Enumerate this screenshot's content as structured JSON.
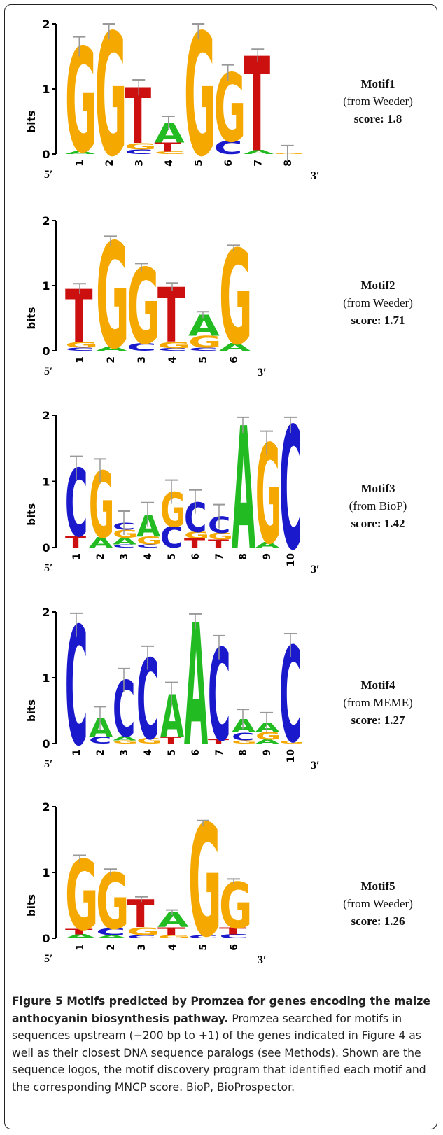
{
  "figure": {
    "caption_title": "Figure 5 Motifs predicted by Promzea for genes encoding the maize anthocyanin biosynthesis pathway.",
    "caption_body": "Promzea searched for motifs in sequences upstream (−200 bp to +1) of the genes indicated in Figure 4 as well as their closest DNA sequence paralogs (see Methods). Shown are the sequence logos, the motif discovery program that identified each motif and the corresponding MNCP score. BioP, BioProspector.",
    "axis_label": "bits",
    "y_ticks": [
      "0",
      "1",
      "2"
    ],
    "end_5": "5′",
    "end_3": "3′"
  },
  "colors": {
    "A": "#22bb22",
    "C": "#1a1acc",
    "G": "#f5a800",
    "T": "#cc1010",
    "errorbar": "#999999"
  },
  "motifs": [
    {
      "name": "Motif1",
      "source": "(from Weeder)",
      "score": "score: 1.8"
    },
    {
      "name": "Motif2",
      "source": "(from Weeder)",
      "score": "score: 1.71"
    },
    {
      "name": "Motif3",
      "source": "(from BioP)",
      "score": "score: 1.42"
    },
    {
      "name": "Motif4",
      "source": "(from MEME)",
      "score": "score: 1.27"
    },
    {
      "name": "Motif5",
      "source": "(from Weeder)",
      "score": "score: 1.26"
    }
  ],
  "chart_data": [
    {
      "type": "sequence-logo",
      "title": "Motif1",
      "ylabel": "bits",
      "ylim": [
        0,
        2
      ],
      "positions": [
        {
          "label": "1",
          "letters": [
            {
              "base": "A",
              "height": 0.05
            },
            {
              "base": "G",
              "height": 1.6
            }
          ],
          "error": 0.15
        },
        {
          "label": "2",
          "letters": [
            {
              "base": "G",
              "height": 1.88
            }
          ],
          "error": 0.12
        },
        {
          "label": "3",
          "letters": [
            {
              "base": "C",
              "height": 0.07
            },
            {
              "base": "G",
              "height": 0.1
            },
            {
              "base": "T",
              "height": 0.85
            }
          ],
          "error": 0.12
        },
        {
          "label": "4",
          "letters": [
            {
              "base": "G",
              "height": 0.04
            },
            {
              "base": "T",
              "height": 0.14
            },
            {
              "base": "A",
              "height": 0.3
            }
          ],
          "error": 0.1
        },
        {
          "label": "5",
          "letters": [
            {
              "base": "G",
              "height": 1.88
            }
          ],
          "error": 0.12
        },
        {
          "label": "6",
          "letters": [
            {
              "base": "C",
              "height": 0.2
            },
            {
              "base": "G",
              "height": 1.05
            }
          ],
          "error": 0.12
        },
        {
          "label": "7",
          "letters": [
            {
              "base": "A",
              "height": 0.06
            },
            {
              "base": "T",
              "height": 1.45
            }
          ],
          "error": 0.1
        },
        {
          "label": "8",
          "letters": [
            {
              "base": "G",
              "height": 0.01
            }
          ],
          "error": 0.12
        }
      ]
    },
    {
      "type": "sequence-logo",
      "title": "Motif2",
      "ylabel": "bits",
      "ylim": [
        0,
        2
      ],
      "positions": [
        {
          "label": "1",
          "letters": [
            {
              "base": "C",
              "height": 0.05
            },
            {
              "base": "G",
              "height": 0.08
            },
            {
              "base": "T",
              "height": 0.82
            }
          ],
          "error": 0.08
        },
        {
          "label": "2",
          "letters": [
            {
              "base": "A",
              "height": 0.06
            },
            {
              "base": "G",
              "height": 1.62
            }
          ],
          "error": 0.08
        },
        {
          "label": "3",
          "letters": [
            {
              "base": "C",
              "height": 0.12
            },
            {
              "base": "G",
              "height": 1.16
            }
          ],
          "error": 0.06
        },
        {
          "label": "4",
          "letters": [
            {
              "base": "C",
              "height": 0.04
            },
            {
              "base": "G",
              "height": 0.1
            },
            {
              "base": "T",
              "height": 0.84
            }
          ],
          "error": 0.06
        },
        {
          "label": "5",
          "letters": [
            {
              "base": "C",
              "height": 0.05
            },
            {
              "base": "G",
              "height": 0.18
            },
            {
              "base": "A",
              "height": 0.32
            }
          ],
          "error": 0.05
        },
        {
          "label": "6",
          "letters": [
            {
              "base": "A",
              "height": 0.12
            },
            {
              "base": "G",
              "height": 1.45
            }
          ],
          "error": 0.05
        }
      ]
    },
    {
      "type": "sequence-logo",
      "title": "Motif3",
      "ylabel": "bits",
      "ylim": [
        0,
        2
      ],
      "positions": [
        {
          "label": "1",
          "letters": [
            {
              "base": "T",
              "height": 0.18
            },
            {
              "base": "C",
              "height": 1.02
            }
          ],
          "error": 0.18
        },
        {
          "label": "2",
          "letters": [
            {
              "base": "A",
              "height": 0.16
            },
            {
              "base": "G",
              "height": 1.0
            }
          ],
          "error": 0.18
        },
        {
          "label": "3",
          "letters": [
            {
              "base": "C",
              "height": 0.05
            },
            {
              "base": "A",
              "height": 0.1
            },
            {
              "base": "G",
              "height": 0.12
            },
            {
              "base": "C",
              "height": 0.1
            }
          ],
          "error": 0.18
        },
        {
          "label": "4",
          "letters": [
            {
              "base": "C",
              "height": 0.05
            },
            {
              "base": "G",
              "height": 0.12
            },
            {
              "base": "A",
              "height": 0.33
            }
          ],
          "error": 0.18
        },
        {
          "label": "5",
          "letters": [
            {
              "base": "C",
              "height": 0.32
            },
            {
              "base": "G",
              "height": 0.52
            }
          ],
          "error": 0.18
        },
        {
          "label": "6",
          "letters": [
            {
              "base": "T",
              "height": 0.14
            },
            {
              "base": "G",
              "height": 0.1
            },
            {
              "base": "C",
              "height": 0.45
            }
          ],
          "error": 0.18
        },
        {
          "label": "7",
          "letters": [
            {
              "base": "T",
              "height": 0.12
            },
            {
              "base": "G",
              "height": 0.1
            },
            {
              "base": "C",
              "height": 0.25
            }
          ],
          "error": 0.18
        },
        {
          "label": "8",
          "letters": [
            {
              "base": "A",
              "height": 1.85
            }
          ],
          "error": 0.12
        },
        {
          "label": "9",
          "letters": [
            {
              "base": "A",
              "height": 0.08
            },
            {
              "base": "G",
              "height": 1.5
            }
          ],
          "error": 0.18
        },
        {
          "label": "10",
          "letters": [
            {
              "base": "C",
              "height": 1.85
            }
          ],
          "error": 0.12
        }
      ]
    },
    {
      "type": "sequence-logo",
      "title": "Motif4",
      "ylabel": "bits",
      "ylim": [
        0,
        2
      ],
      "positions": [
        {
          "label": "1",
          "letters": [
            {
              "base": "C",
              "height": 1.8
            }
          ],
          "error": 0.18
        },
        {
          "label": "2",
          "letters": [
            {
              "base": "C",
              "height": 0.1
            },
            {
              "base": "A",
              "height": 0.28
            }
          ],
          "error": 0.18
        },
        {
          "label": "3",
          "letters": [
            {
              "base": "G",
              "height": 0.05
            },
            {
              "base": "A",
              "height": 0.06
            },
            {
              "base": "C",
              "height": 0.85
            }
          ],
          "error": 0.18
        },
        {
          "label": "4",
          "letters": [
            {
              "base": "G",
              "height": 0.08
            },
            {
              "base": "C",
              "height": 1.22
            }
          ],
          "error": 0.18
        },
        {
          "label": "5",
          "letters": [
            {
              "base": "T",
              "height": 0.1
            },
            {
              "base": "A",
              "height": 0.65
            }
          ],
          "error": 0.18
        },
        {
          "label": "6",
          "letters": [
            {
              "base": "A",
              "height": 1.85
            }
          ],
          "error": 0.12
        },
        {
          "label": "7",
          "letters": [
            {
              "base": "T",
              "height": 0.06
            },
            {
              "base": "C",
              "height": 1.4
            }
          ],
          "error": 0.18
        },
        {
          "label": "8",
          "letters": [
            {
              "base": "G",
              "height": 0.05
            },
            {
              "base": "C",
              "height": 0.12
            },
            {
              "base": "A",
              "height": 0.2
            }
          ],
          "error": 0.15
        },
        {
          "label": "9",
          "letters": [
            {
              "base": "A",
              "height": 0.06
            },
            {
              "base": "G",
              "height": 0.12
            },
            {
              "base": "A",
              "height": 0.14
            }
          ],
          "error": 0.15
        },
        {
          "label": "10",
          "letters": [
            {
              "base": "G",
              "height": 0.04
            },
            {
              "base": "C",
              "height": 1.45
            }
          ],
          "error": 0.18
        }
      ]
    },
    {
      "type": "sequence-logo",
      "title": "Motif5",
      "ylabel": "bits",
      "ylim": [
        0,
        2
      ],
      "positions": [
        {
          "label": "1",
          "letters": [
            {
              "base": "A",
              "height": 0.06
            },
            {
              "base": "T",
              "height": 0.08
            },
            {
              "base": "G",
              "height": 1.06
            }
          ],
          "error": 0.06
        },
        {
          "label": "2",
          "letters": [
            {
              "base": "A",
              "height": 0.05
            },
            {
              "base": "C",
              "height": 0.1
            },
            {
              "base": "G",
              "height": 0.85
            }
          ],
          "error": 0.05
        },
        {
          "label": "3",
          "letters": [
            {
              "base": "C",
              "height": 0.05
            },
            {
              "base": "G",
              "height": 0.12
            },
            {
              "base": "T",
              "height": 0.42
            }
          ],
          "error": 0.04
        },
        {
          "label": "4",
          "letters": [
            {
              "base": "G",
              "height": 0.05
            },
            {
              "base": "T",
              "height": 0.12
            },
            {
              "base": "A",
              "height": 0.22
            }
          ],
          "error": 0.04
        },
        {
          "label": "5",
          "letters": [
            {
              "base": "C",
              "height": 0.05
            },
            {
              "base": "G",
              "height": 1.7
            }
          ],
          "error": 0.04
        },
        {
          "label": "6",
          "letters": [
            {
              "base": "C",
              "height": 0.06
            },
            {
              "base": "T",
              "height": 0.1
            },
            {
              "base": "G",
              "height": 0.7
            }
          ],
          "error": 0.04
        }
      ]
    }
  ]
}
